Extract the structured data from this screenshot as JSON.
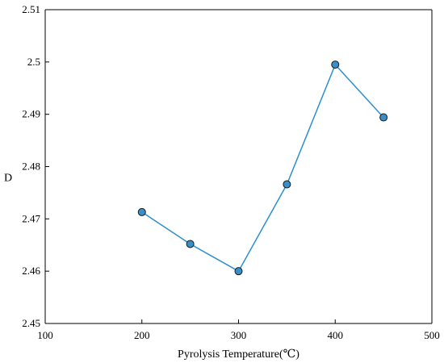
{
  "chart_data": {
    "type": "line",
    "title": "",
    "xlabel": "Pyrolysis Temperature(℃)",
    "ylabel": "D",
    "xlim": [
      100,
      500
    ],
    "ylim": [
      2.45,
      2.51
    ],
    "x_ticks": [
      "100",
      "200",
      "300",
      "400",
      "500"
    ],
    "y_ticks": [
      "2.45",
      "2.46",
      "2.47",
      "2.48",
      "2.49",
      "2.5",
      "2.51"
    ],
    "grid": false,
    "series": [
      {
        "x": [
          200,
          250,
          300,
          350,
          400,
          450
        ],
        "values": [
          2.4713,
          2.4652,
          2.46,
          2.4766,
          2.4995,
          2.4894
        ]
      }
    ],
    "colors": {
      "line": "#2b8fd1",
      "marker": "#3a8fc8",
      "axis": "#000000"
    }
  }
}
